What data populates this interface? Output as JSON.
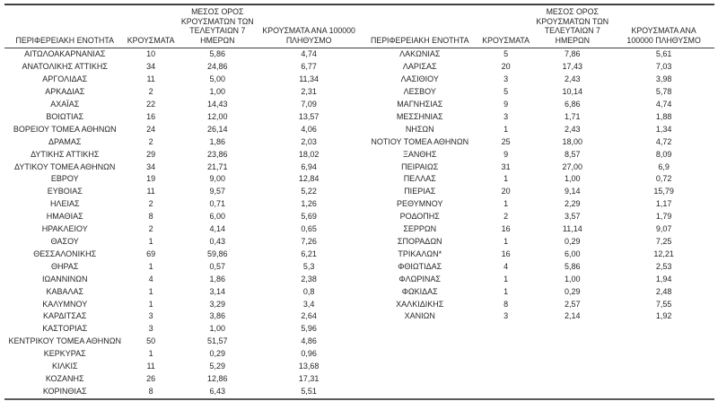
{
  "colors": {
    "background": "#ffffff",
    "text": "#262626",
    "rule_dark": "#404040",
    "rule_bottom": "#595959"
  },
  "tables": [
    {
      "name": "regional-units-left",
      "headers": [
        "ΠΕΡΙΦΕΡΕΙΑΚΗ ΕΝΟΤΗΤΑ",
        "ΚΡΟΥΣΜΑΤΑ",
        "ΜΕΣΟΣ ΟΡΟΣ\nΚΡΟΥΣΜΑΤΩΝ ΤΩΝ\nΤΕΛΕΥΤΑΙΩΝ 7\nΗΜΕΡΩΝ",
        "ΚΡΟΥΣΜΑΤΑ ΑΝΑ 100000\nΠΛΗΘΥΣΜΟ"
      ],
      "rows": [
        [
          "ΑΙΤΩΛΟΑΚΑΡΝΑΝΙΑΣ",
          "10",
          "5,86",
          "4,74"
        ],
        [
          "ΑΝΑΤΟΛΙΚΗΣ ΑΤΤΙΚΗΣ",
          "34",
          "24,86",
          "6,77"
        ],
        [
          "ΑΡΓΟΛΙΔΑΣ",
          "11",
          "5,00",
          "11,34"
        ],
        [
          "ΑΡΚΑΔΙΑΣ",
          "2",
          "1,00",
          "2,31"
        ],
        [
          "ΑΧΑΪΑΣ",
          "22",
          "14,43",
          "7,09"
        ],
        [
          "ΒΟΙΩΤΙΑΣ",
          "16",
          "12,00",
          "13,57"
        ],
        [
          "ΒΟΡΕΙΟΥ ΤΟΜΕΑ ΑΘΗΝΩΝ",
          "24",
          "26,14",
          "4,06"
        ],
        [
          "ΔΡΑΜΑΣ",
          "2",
          "1,86",
          "2,03"
        ],
        [
          "ΔΥΤΙΚΗΣ ΑΤΤΙΚΗΣ",
          "29",
          "23,86",
          "18,02"
        ],
        [
          "ΔΥΤΙΚΟΥ ΤΟΜΕΑ ΑΘΗΝΩΝ",
          "34",
          "21,71",
          "6,94"
        ],
        [
          "ΕΒΡΟΥ",
          "19",
          "9,00",
          "12,84"
        ],
        [
          "ΕΥΒΟΙΑΣ",
          "11",
          "9,57",
          "5,22"
        ],
        [
          "ΗΛΕΙΑΣ",
          "2",
          "0,71",
          "1,26"
        ],
        [
          "ΗΜΑΘΙΑΣ",
          "8",
          "6,00",
          "5,69"
        ],
        [
          "ΗΡΑΚΛΕΙΟΥ",
          "2",
          "4,14",
          "0,65"
        ],
        [
          "ΘΑΣΟΥ",
          "1",
          "0,43",
          "7,26"
        ],
        [
          "ΘΕΣΣΑΛΟΝΙΚΗΣ",
          "69",
          "59,86",
          "6,21"
        ],
        [
          "ΘΗΡΑΣ",
          "1",
          "0,57",
          "5,3"
        ],
        [
          "ΙΩΑΝΝΙΝΩΝ",
          "4",
          "1,86",
          "2,38"
        ],
        [
          "ΚΑΒΑΛΑΣ",
          "1",
          "3,14",
          "0,8"
        ],
        [
          "ΚΑΛΥΜΝΟΥ",
          "1",
          "3,29",
          "3,4"
        ],
        [
          "ΚΑΡΔΙΤΣΑΣ",
          "3",
          "3,86",
          "2,64"
        ],
        [
          "ΚΑΣΤΟΡΙΑΣ",
          "3",
          "1,00",
          "5,96"
        ],
        [
          "ΚΕΝΤΡΙΚΟΥ ΤΟΜΕΑ ΑΘΗΝΩΝ",
          "50",
          "51,57",
          "4,86"
        ],
        [
          "ΚΕΡΚΥΡΑΣ",
          "1",
          "0,29",
          "0,96"
        ],
        [
          "ΚΙΛΚΙΣ",
          "11",
          "5,29",
          "13,68"
        ],
        [
          "ΚΟΖΑΝΗΣ",
          "26",
          "12,86",
          "17,31"
        ],
        [
          "ΚΟΡΙΝΘΙΑΣ",
          "8",
          "6,43",
          "5,51"
        ]
      ]
    },
    {
      "name": "regional-units-right",
      "headers": [
        "ΠΕΡΙΦΕΡΕΙΑΚΗ ΕΝΟΤΗΤΑ",
        "ΚΡΟΥΣΜΑΤΑ",
        "ΜΕΣΟΣ ΟΡΟΣ\nΚΡΟΥΣΜΑΤΩΝ ΤΩΝ\nΤΕΛΕΥΤΑΙΩΝ 7\nΗΜΕΡΩΝ",
        "ΚΡΟΥΣΜΑΤΑ ΑΝΑ\n100000 ΠΛΗΘΥΣΜΟ"
      ],
      "rows": [
        [
          "ΛΑΚΩΝΙΑΣ",
          "5",
          "7,86",
          "5,61"
        ],
        [
          "ΛΑΡΙΣΑΣ",
          "20",
          "17,43",
          "7,03"
        ],
        [
          "ΛΑΣΙΘΙΟΥ",
          "3",
          "2,43",
          "3,98"
        ],
        [
          "ΛΕΣΒΟΥ",
          "5",
          "10,14",
          "5,78"
        ],
        [
          "ΜΑΓΝΗΣΙΑΣ",
          "9",
          "6,86",
          "4,74"
        ],
        [
          "ΜΕΣΣΗΝΙΑΣ",
          "3",
          "1,71",
          "1,88"
        ],
        [
          "ΝΗΣΩΝ",
          "1",
          "2,43",
          "1,34"
        ],
        [
          "ΝΟΤΙΟΥ ΤΟΜΕΑ ΑΘΗΝΩΝ",
          "25",
          "18,00",
          "4,72"
        ],
        [
          "ΞΑΝΘΗΣ",
          "9",
          "8,57",
          "8,09"
        ],
        [
          "ΠΕΙΡΑΙΩΣ",
          "31",
          "27,00",
          "6,9"
        ],
        [
          "ΠΕΛΛΑΣ",
          "1",
          "1,00",
          "0,72"
        ],
        [
          "ΠΙΕΡΙΑΣ",
          "20",
          "9,14",
          "15,79"
        ],
        [
          "ΡΕΘΥΜΝΟΥ",
          "1",
          "2,29",
          "1,17"
        ],
        [
          "ΡΟΔΟΠΗΣ",
          "2",
          "3,57",
          "1,79"
        ],
        [
          "ΣΕΡΡΩΝ",
          "16",
          "11,14",
          "9,07"
        ],
        [
          "ΣΠΟΡΑΔΩΝ",
          "1",
          "0,29",
          "7,25"
        ],
        [
          "ΤΡΙΚΑΛΩΝ*",
          "16",
          "6,00",
          "12,21"
        ],
        [
          "ΦΘΙΩΤΙΔΑΣ",
          "4",
          "5,86",
          "2,53"
        ],
        [
          "ΦΛΩΡΙΝΑΣ",
          "1",
          "1,00",
          "1,94"
        ],
        [
          "ΦΩΚΙΔΑΣ",
          "1",
          "0,29",
          "2,48"
        ],
        [
          "ΧΑΛΚΙΔΙΚΗΣ",
          "8",
          "2,57",
          "7,55"
        ],
        [
          "ΧΑΝΙΩΝ",
          "3",
          "2,14",
          "1,92"
        ]
      ]
    }
  ]
}
